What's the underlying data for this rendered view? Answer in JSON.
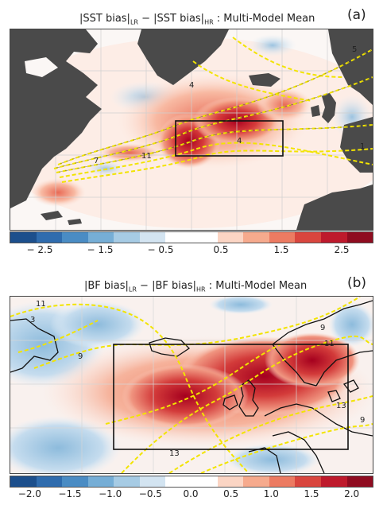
{
  "panel_a": {
    "label": "(a)",
    "title_part1": "|SST bias|",
    "sub1": "LR",
    "title_part2": " − |SST bias|",
    "sub2": "HR",
    "title_part3": " :  Multi-Model Mean",
    "contour_labels": [
      "5",
      "4",
      "7",
      "11",
      "4",
      "1"
    ],
    "colorbar_ticks": [
      "− 2.5",
      "− 1.5",
      "− 0.5",
      "0.5",
      "1.5",
      "2.5"
    ],
    "colorbar_colors": [
      "#1c4f8c",
      "#2f6cae",
      "#4a8cc4",
      "#76aed6",
      "#a6cbe4",
      "#d3e4f1",
      "#ffffff",
      "#ffffff",
      "#fbd5c4",
      "#f6aa8d",
      "#ec7b62",
      "#d9463e",
      "#be1a2c",
      "#8f0c20"
    ]
  },
  "panel_b": {
    "label": "(b)",
    "title_part1": "|BF bias|",
    "sub1": "LR",
    "title_part2": " − |BF bias|",
    "sub2": "HR",
    "title_part3": " :  Multi-Model Mean",
    "contour_labels": [
      "11",
      "3",
      "9",
      "9",
      "11",
      "13",
      "9",
      "13"
    ],
    "colorbar_ticks": [
      "−2.0",
      "−1.5",
      "−1.0",
      "−0.5",
      "0.0",
      "0.5",
      "1.0",
      "1.5",
      "2.0"
    ],
    "colorbar_colors": [
      "#1c4f8c",
      "#2f6cae",
      "#4a8cc4",
      "#76aed6",
      "#a6cbe4",
      "#d3e4f1",
      "#ffffff",
      "#ffffff",
      "#fbd5c4",
      "#f6aa8d",
      "#ec7b62",
      "#d9463e",
      "#be1a2c",
      "#8f0c20"
    ]
  }
}
